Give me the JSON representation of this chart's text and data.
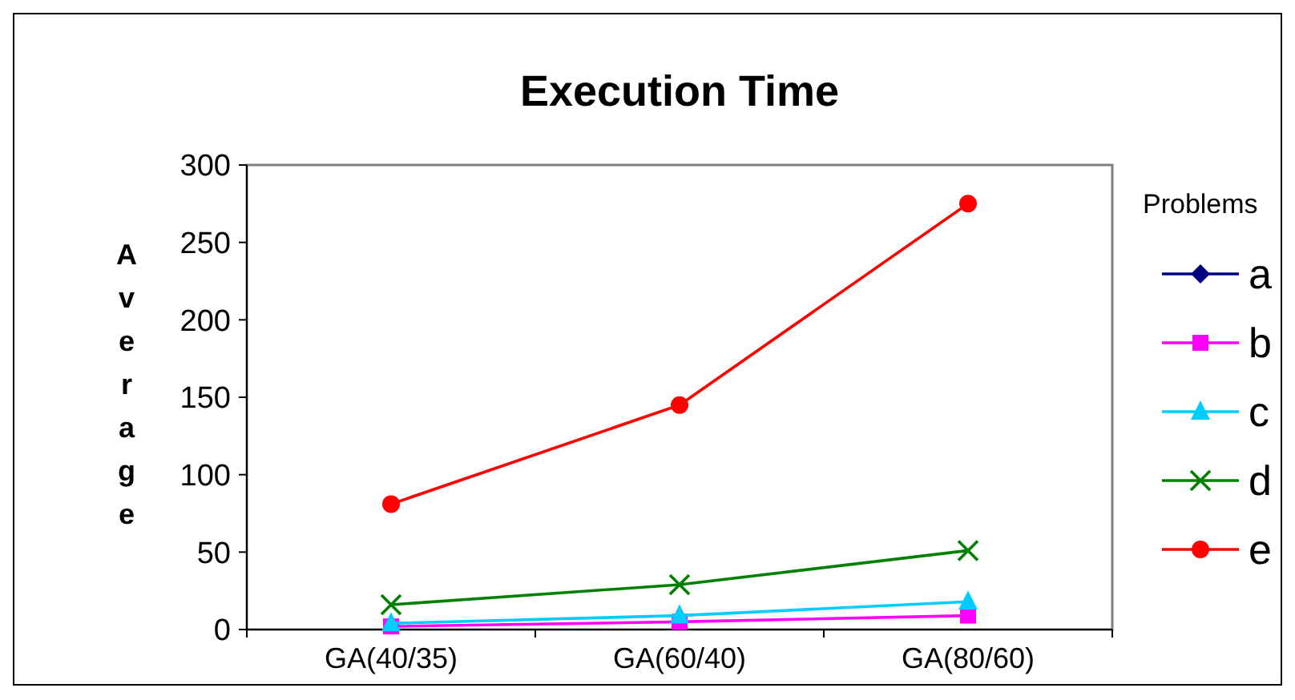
{
  "chart_data": {
    "type": "line",
    "title": "Execution Time",
    "ylabel": "Average",
    "legend_title": "Problems",
    "legend": "right",
    "categories": [
      "GA(40/35)",
      "GA(60/40)",
      "GA(80/60)"
    ],
    "ylim": [
      0,
      300
    ],
    "yticks": [
      0,
      50,
      100,
      150,
      200,
      250,
      300
    ],
    "grid": false,
    "line_style": "solid",
    "series": [
      {
        "name": "a",
        "color": "#000080",
        "marker": "diamond",
        "values": [
          null,
          null,
          null
        ]
      },
      {
        "name": "b",
        "color": "#ff00ff",
        "marker": "square",
        "values": [
          2,
          5,
          9
        ]
      },
      {
        "name": "c",
        "color": "#00ccff",
        "marker": "triangle",
        "values": [
          4,
          9,
          18
        ]
      },
      {
        "name": "d",
        "color": "#008000",
        "marker": "cross",
        "values": [
          16,
          29,
          51
        ]
      },
      {
        "name": "e",
        "color": "#ff0000",
        "marker": "circle",
        "values": [
          81,
          145,
          275
        ]
      }
    ]
  }
}
